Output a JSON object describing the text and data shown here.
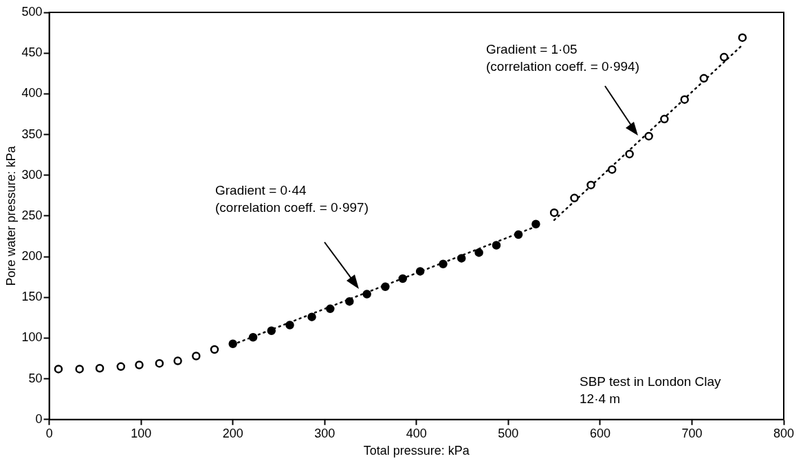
{
  "chart_data": {
    "type": "scatter",
    "xlabel": "Total pressure: kPa",
    "ylabel": "Pore water pressure: kPa",
    "xlim": [
      0,
      800
    ],
    "xticks": [
      0,
      100,
      200,
      300,
      400,
      500,
      600,
      700,
      800
    ],
    "ylim": [
      0,
      500
    ],
    "yticks": [
      0,
      50,
      100,
      150,
      200,
      250,
      300,
      350,
      400,
      450,
      500
    ],
    "grid": false,
    "legend": false,
    "marker": "circle",
    "series": [
      {
        "color": "#000000",
        "x": [
          10,
          33,
          55,
          78,
          98,
          120,
          140,
          160,
          180
        ],
        "values": [
          62,
          62,
          63,
          65,
          67,
          69,
          72,
          78,
          86
        ]
      },
      {
        "color": "#000000",
        "x": [
          200,
          222,
          242,
          262,
          286,
          306,
          327,
          346,
          366,
          385,
          404,
          429,
          449,
          468,
          487,
          511,
          530
        ],
        "values": [
          93,
          101,
          109,
          116,
          126,
          136,
          145,
          154,
          163,
          173,
          182,
          191,
          198,
          205,
          214,
          227,
          240
        ]
      },
      {
        "color": "#000000",
        "x": [
          550,
          572,
          590,
          613,
          632,
          653,
          670,
          692,
          713,
          735,
          755
        ],
        "values": [
          254,
          272,
          288,
          307,
          326,
          348,
          369,
          393,
          419,
          445,
          469
        ]
      },
      {
        "type": "line",
        "color": "#000000",
        "line_style": "dotted",
        "marker": "none",
        "x": [
          200,
          530
        ],
        "values": [
          92,
          237
        ]
      },
      {
        "type": "line",
        "color": "#000000",
        "line_style": "dotted",
        "marker": "none",
        "x": [
          550,
          755
        ],
        "values": [
          245,
          460
        ]
      }
    ],
    "annotations": [
      "Gradient = 0·44\n(correlation coeff. = 0·997)",
      "Gradient = 1·05\n(correlation coeff. = 0·994)",
      "SBP test in London Clay\n12·4 m"
    ]
  }
}
